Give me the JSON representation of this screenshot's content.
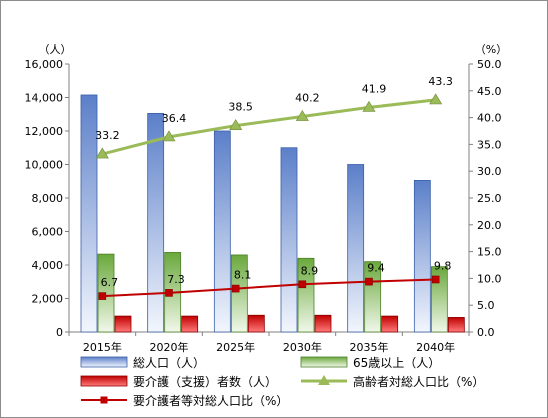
{
  "chart_data": {
    "type": "bar",
    "categories": [
      "2015年",
      "2020年",
      "2025年",
      "2030年",
      "2035年",
      "2040年"
    ],
    "left_axis": {
      "unit": "（人）",
      "ylim": [
        0,
        16000
      ],
      "ticks": [
        "0",
        "2,000",
        "4,000",
        "6,000",
        "8,000",
        "10,000",
        "12,000",
        "14,000",
        "16,000"
      ]
    },
    "right_axis": {
      "unit": "（%）",
      "ylim": [
        0,
        50
      ],
      "ticks": [
        "0.0",
        "5.0",
        "10.0",
        "15.0",
        "20.0",
        "25.0",
        "30.0",
        "35.0",
        "40.0",
        "45.0",
        "50.0"
      ]
    },
    "series": [
      {
        "name": "総人口（人）",
        "type": "bar",
        "axis": "left",
        "color": "#7f9fd8",
        "values": [
          14150,
          13050,
          12000,
          11000,
          10000,
          9050
        ]
      },
      {
        "name": "65歳以上（人）",
        "type": "bar",
        "axis": "left",
        "color": "#8dc05a",
        "values": [
          4650,
          4750,
          4600,
          4400,
          4200,
          3900
        ]
      },
      {
        "name": "要介護（支援）者数（人）",
        "type": "bar",
        "axis": "left",
        "color": "#d42b2b",
        "values": [
          950,
          950,
          1000,
          1000,
          950,
          870
        ]
      },
      {
        "name": "高齢者対総人口比（%）",
        "type": "line",
        "axis": "right",
        "color": "#9bbb59",
        "marker": "triangle",
        "values": [
          33.2,
          36.4,
          38.5,
          40.2,
          41.9,
          43.3
        ],
        "labels": [
          "33.2",
          "36.4",
          "38.5",
          "40.2",
          "41.9",
          "43.3"
        ]
      },
      {
        "name": "要介護者等対総人口比（%）",
        "type": "line",
        "axis": "right",
        "color": "#c00000",
        "marker": "square",
        "values": [
          6.7,
          7.3,
          8.1,
          8.9,
          9.4,
          9.8
        ],
        "labels": [
          "6.7",
          "7.3",
          "8.1",
          "8.9",
          "9.4",
          "9.8"
        ]
      }
    ],
    "grid": false,
    "legend_position": "bottom"
  }
}
